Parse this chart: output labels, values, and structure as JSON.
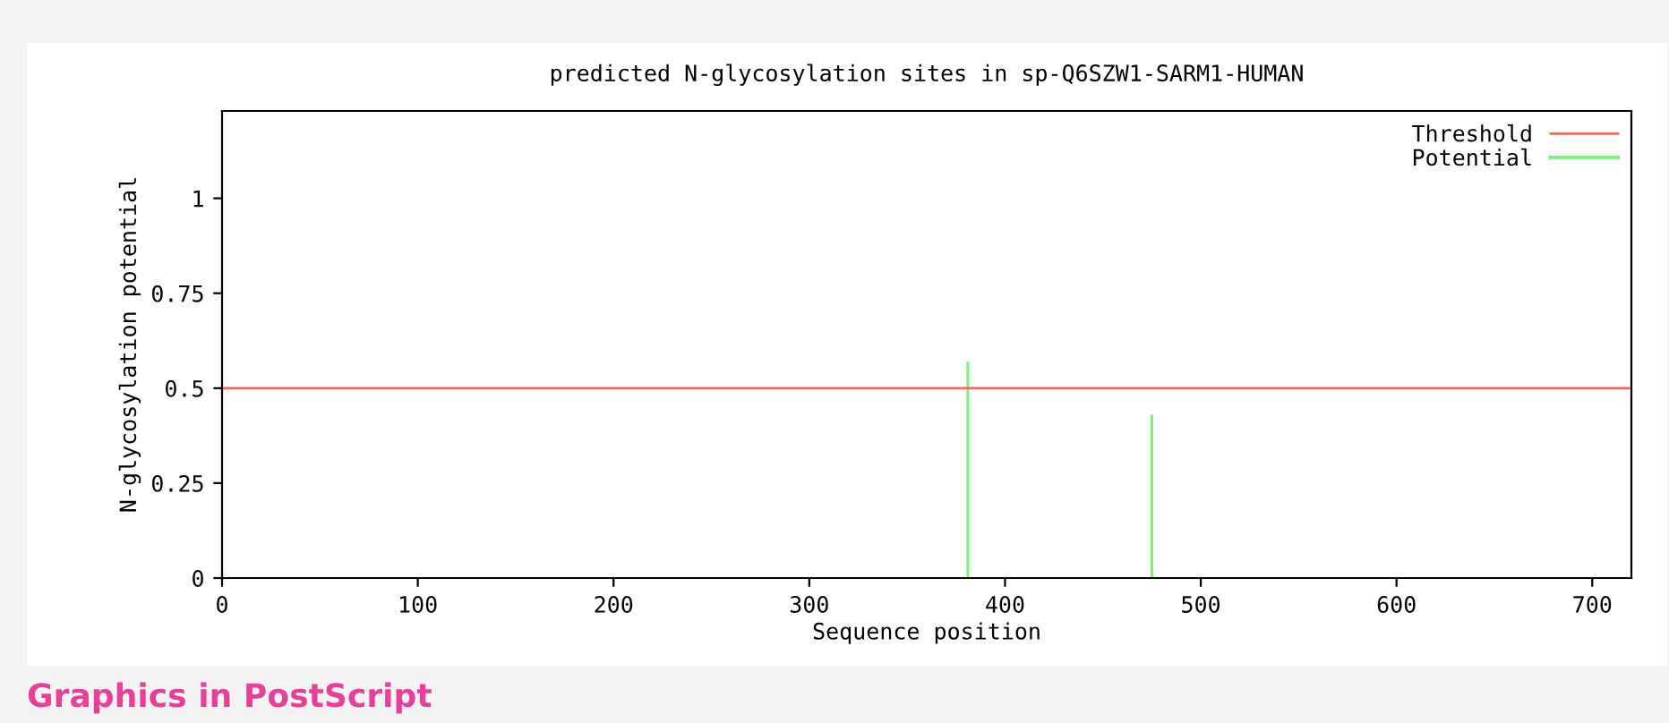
{
  "chart_data": {
    "type": "bar",
    "title": "predicted N-glycosylation sites in sp-Q6SZW1-SARM1-HUMAN",
    "xlabel": "Sequence position",
    "ylabel": "N-glycosylation potential",
    "series": [
      {
        "name": "Potential",
        "color": "#80f080",
        "x": [
          381,
          475
        ],
        "values": [
          0.57,
          0.43
        ]
      }
    ],
    "ref_lines": [
      {
        "axis": "y",
        "value": 0.5,
        "label": "Threshold",
        "color": "#ff6060"
      }
    ],
    "xlim": [
      0,
      720
    ],
    "xticks": [
      0,
      100,
      200,
      300,
      400,
      500,
      600,
      700
    ],
    "ylim": [
      0,
      1.23
    ],
    "yticks": [
      0,
      0.25,
      0.5,
      0.75,
      1
    ],
    "grid": false,
    "legend": "top right",
    "annotations": [
      "Graphics in PostScript"
    ]
  }
}
